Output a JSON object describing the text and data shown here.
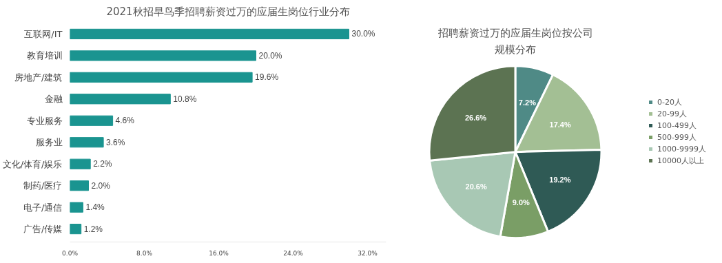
{
  "chart_data": [
    {
      "type": "bar",
      "orientation": "horizontal",
      "title": "2021秋招早鸟季招聘薪资过万的应届生岗位行业分布",
      "categories": [
        "互联网/IT",
        "教育培训",
        "房地产/建筑",
        "金融",
        "专业服务",
        "服务业",
        "文化/体育/娱乐",
        "制药/医疗",
        "电子/通信",
        "广告/传媒"
      ],
      "values": [
        30.0,
        20.0,
        19.6,
        10.8,
        4.6,
        3.6,
        2.2,
        2.0,
        1.4,
        1.2
      ],
      "value_labels": [
        "30.0%",
        "20.0%",
        "19.6%",
        "10.8%",
        "4.6%",
        "3.6%",
        "2.2%",
        "2.0%",
        "1.4%",
        "1.2%"
      ],
      "color": "#1a9490",
      "xlim": [
        0,
        34
      ],
      "xticks": [
        {
          "value": 0,
          "label": "0.0%"
        },
        {
          "value": 8,
          "label": "8.0%"
        },
        {
          "value": 16,
          "label": "16.0%"
        },
        {
          "value": 24,
          "label": "24.0%"
        },
        {
          "value": 32,
          "label": "32.0%"
        }
      ],
      "grid": false
    },
    {
      "type": "pie",
      "title": "招聘薪资过万的应届生岗位按公司规模分布",
      "categories": [
        "0-20人",
        "20-99人",
        "100-499人",
        "500-999人",
        "1000-9999人",
        "10000人以上"
      ],
      "values": [
        7.2,
        17.4,
        19.2,
        9.0,
        20.6,
        26.6
      ],
      "value_labels": [
        "7.2%",
        "17.4%",
        "19.2%",
        "9.0%",
        "20.6%",
        "26.6%"
      ],
      "colors": [
        "#4f8a86",
        "#a3bf94",
        "#2f5a55",
        "#7a9e66",
        "#a8c8b4",
        "#5c7352"
      ],
      "legend": "right"
    }
  ]
}
